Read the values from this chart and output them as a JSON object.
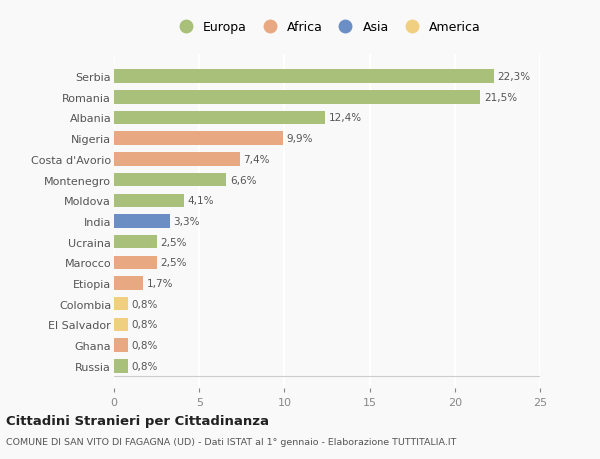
{
  "countries": [
    "Serbia",
    "Romania",
    "Albania",
    "Nigeria",
    "Costa d'Avorio",
    "Montenegro",
    "Moldova",
    "India",
    "Ucraina",
    "Marocco",
    "Etiopia",
    "Colombia",
    "El Salvador",
    "Ghana",
    "Russia"
  ],
  "values": [
    22.3,
    21.5,
    12.4,
    9.9,
    7.4,
    6.6,
    4.1,
    3.3,
    2.5,
    2.5,
    1.7,
    0.8,
    0.8,
    0.8,
    0.8
  ],
  "labels": [
    "22,3%",
    "21,5%",
    "12,4%",
    "9,9%",
    "7,4%",
    "6,6%",
    "4,1%",
    "3,3%",
    "2,5%",
    "2,5%",
    "1,7%",
    "0,8%",
    "0,8%",
    "0,8%",
    "0,8%"
  ],
  "continents": [
    "Europa",
    "Europa",
    "Europa",
    "Africa",
    "Africa",
    "Europa",
    "Europa",
    "Asia",
    "Europa",
    "Africa",
    "Africa",
    "America",
    "America",
    "Africa",
    "Europa"
  ],
  "continent_colors": {
    "Europa": "#a8c07a",
    "Africa": "#e8a882",
    "Asia": "#6b8fc4",
    "America": "#f0d080"
  },
  "legend_order": [
    "Europa",
    "Africa",
    "Asia",
    "America"
  ],
  "title": "Cittadini Stranieri per Cittadinanza",
  "subtitle": "COMUNE DI SAN VITO DI FAGAGNA (UD) - Dati ISTAT al 1° gennaio - Elaborazione TUTTITALIA.IT",
  "xlim": [
    0,
    25
  ],
  "xticks": [
    0,
    5,
    10,
    15,
    20,
    25
  ],
  "background_color": "#f9f9f9",
  "grid_color": "#ffffff",
  "bar_height": 0.65
}
